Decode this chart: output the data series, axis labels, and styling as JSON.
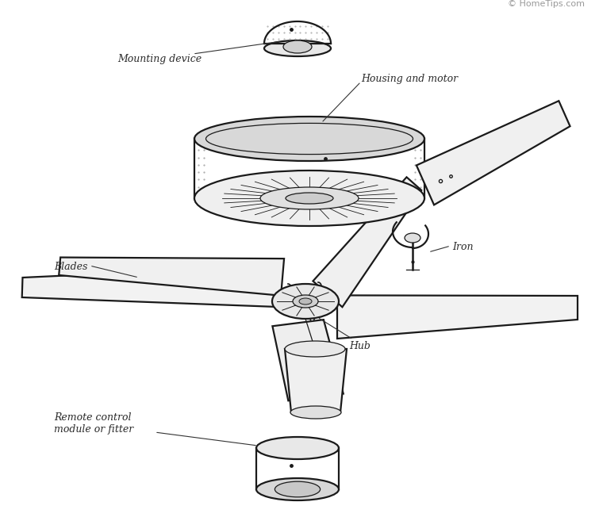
{
  "background_color": "#ffffff",
  "fig_width": 7.55,
  "fig_height": 6.57,
  "labels": {
    "mounting_device": "Mounting device",
    "housing_motor": "Housing and motor",
    "blades": "Blades",
    "iron": "Iron",
    "hub": "Hub",
    "remote": "Remote control\nmodule or fitter",
    "copyright": "© HomeTips.com"
  },
  "line_color": "#1a1a1a",
  "text_color": "#2a2a2a",
  "label_fontsize": 9,
  "copyright_fontsize": 8,
  "copyright_color": "#999999"
}
